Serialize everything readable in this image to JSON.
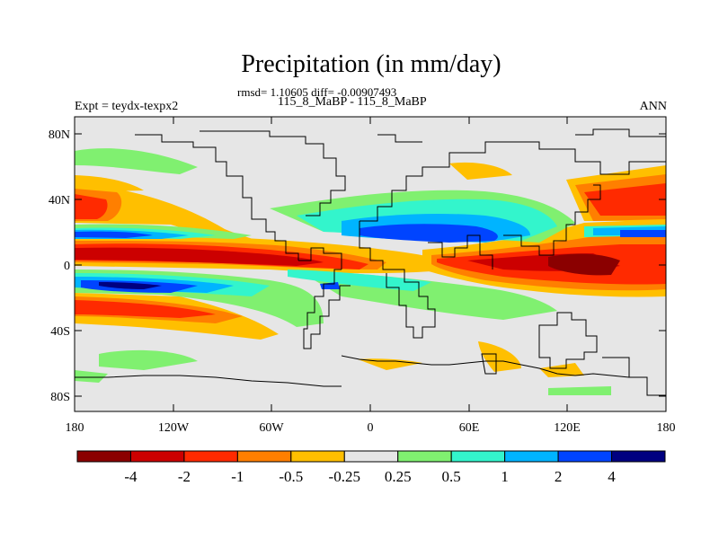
{
  "header": {
    "title": "Precipitation (in mm/day)",
    "stats": "rmsd= 1.10605 diff= -0.00907493",
    "cases": "115_8_MaBP - 115_8_MaBP",
    "experiment": "Expt = teydx-texpx2",
    "season": "ANN"
  },
  "map": {
    "lat_ticks": [
      "80N",
      "40N",
      "0",
      "40S",
      "80S"
    ],
    "lon_ticks": [
      "180",
      "120W",
      "60W",
      "0",
      "60E",
      "120E",
      "180"
    ],
    "background_color": "#e6e6e6"
  },
  "colorbar": {
    "labels": [
      "-4",
      "-2",
      "-1",
      "-0.5",
      "-0.25",
      "0.25",
      "0.5",
      "1",
      "2",
      "4"
    ],
    "colors": [
      "#8b0000",
      "#cc0000",
      "#ff2a00",
      "#ff7f00",
      "#ffbf00",
      "#e6e6e6",
      "#80f070",
      "#33f5cc",
      "#00b4ff",
      "#0044ff",
      "#000080"
    ]
  }
}
